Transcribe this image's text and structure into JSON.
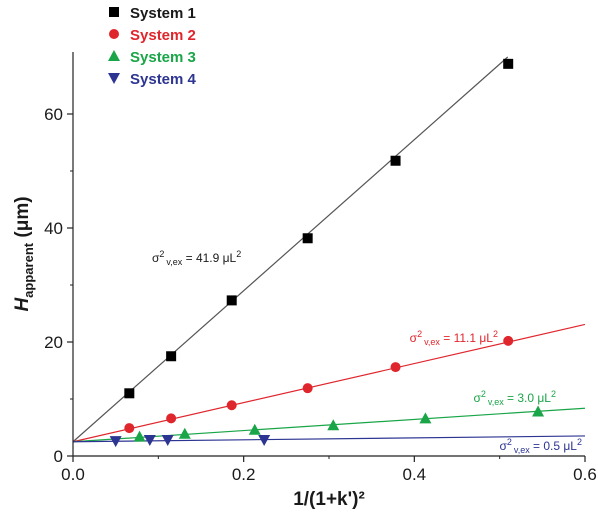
{
  "chart_data": {
    "type": "scatter",
    "xlabel": "1/(1+k')²",
    "ylabel": "H_apparent (μm)",
    "xlim": [
      0,
      0.6
    ],
    "ylim": [
      0,
      70
    ],
    "xticks": [
      "0.0",
      "0.2",
      "0.4",
      "0.6"
    ],
    "yticks": [
      "0",
      "20",
      "40",
      "60"
    ],
    "grid": false,
    "legend_position": "top-left",
    "series": [
      {
        "name": "System 1",
        "color": "#000000",
        "marker": "square",
        "line_color": "#555555",
        "x": [
          0.066,
          0.115,
          0.186,
          0.275,
          0.378,
          0.51
        ],
        "y": [
          11.0,
          17.5,
          27.3,
          38.2,
          51.8,
          68.8
        ],
        "fit": {
          "intercept": 2.5,
          "slope": 132.5
        },
        "annotation": {
          "base": "σ",
          "sup": "2",
          "sub": "v,ex",
          "text": " = 41.9 μL",
          "unit_sup": "2"
        }
      },
      {
        "name": "System 2",
        "color": "#e0262d",
        "marker": "circle",
        "line_color": "#e0262d",
        "x": [
          0.066,
          0.115,
          0.186,
          0.275,
          0.378,
          0.51
        ],
        "y": [
          4.9,
          6.6,
          8.9,
          11.9,
          15.6,
          20.2
        ],
        "fit": {
          "intercept": 2.5,
          "slope": 34.3
        },
        "annotation": {
          "base": "σ",
          "sup": "2",
          "sub": "v,ex",
          "text": " = 11.1 μL",
          "unit_sup": "2"
        }
      },
      {
        "name": "System 3",
        "color": "#1aa548",
        "marker": "triangle-up",
        "line_color": "#1aa548",
        "x": [
          0.078,
          0.131,
          0.213,
          0.305,
          0.413,
          0.545
        ],
        "y": [
          3.4,
          3.9,
          4.6,
          5.4,
          6.6,
          7.8
        ],
        "fit": {
          "intercept": 2.5,
          "slope": 9.8
        },
        "annotation": {
          "base": "σ",
          "sup": "2",
          "sub": "v,ex",
          "text": " = 3.0 μL",
          "unit_sup": "2"
        }
      },
      {
        "name": "System 4",
        "color": "#2d3592",
        "marker": "triangle-down",
        "line_color": "#2d3592",
        "x": [
          0.05,
          0.09,
          0.111,
          0.224
        ],
        "y": [
          2.6,
          2.8,
          2.8,
          2.8
        ],
        "fit": {
          "intercept": 2.5,
          "slope": 1.7
        },
        "annotation": {
          "base": "σ",
          "sup": "2",
          "sub": "v,ex",
          "text": " = 0.5 μL",
          "unit_sup": "2"
        }
      }
    ]
  }
}
